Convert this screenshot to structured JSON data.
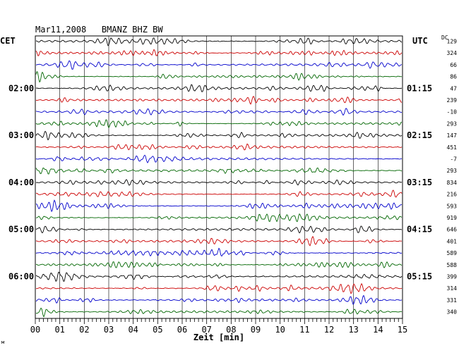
{
  "chart_data": {
    "type": "line",
    "title": "Mar11,2008   BMANZ BHZ BW",
    "left_timezone": "CET",
    "right_timezone": "UTC",
    "dc_header": "DC",
    "xlabel": "Zeit [min]",
    "x_ticks": [
      "00",
      "01",
      "02",
      "03",
      "04",
      "05",
      "06",
      "07",
      "08",
      "09",
      "10",
      "11",
      "12",
      "13",
      "14",
      "15"
    ],
    "xlim": [
      0,
      15
    ],
    "left_hour_labels": [
      {
        "row": 4,
        "text": "02:00"
      },
      {
        "row": 8,
        "text": "03:00"
      },
      {
        "row": 12,
        "text": "04:00"
      },
      {
        "row": 16,
        "text": "05:00"
      },
      {
        "row": 20,
        "text": "06:00"
      }
    ],
    "right_hour_labels": [
      {
        "row": 4,
        "text": "01:15"
      },
      {
        "row": 8,
        "text": "02:15"
      },
      {
        "row": 12,
        "text": "03:15"
      },
      {
        "row": 16,
        "text": "04:15"
      },
      {
        "row": 20,
        "text": "05:15"
      }
    ],
    "trace_colors": [
      "#000000",
      "#cc0000",
      "#0000cc",
      "#006600"
    ],
    "dc_values": [
      129,
      324,
      66,
      86,
      47,
      239,
      -10,
      293,
      147,
      451,
      -7,
      293,
      834,
      216,
      593,
      919,
      646,
      401,
      589,
      588,
      399,
      314,
      331,
      340
    ],
    "grid": true
  },
  "footer_mark": "м"
}
